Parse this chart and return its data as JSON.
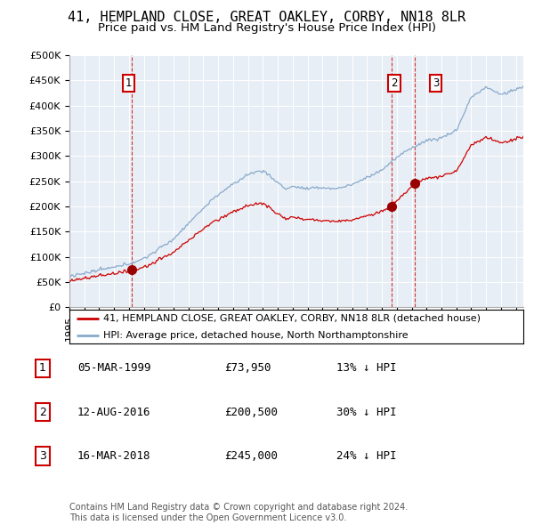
{
  "title": "41, HEMPLAND CLOSE, GREAT OAKLEY, CORBY, NN18 8LR",
  "subtitle": "Price paid vs. HM Land Registry's House Price Index (HPI)",
  "ylim": [
    0,
    500000
  ],
  "yticks": [
    0,
    50000,
    100000,
    150000,
    200000,
    250000,
    300000,
    350000,
    400000,
    450000,
    500000
  ],
  "xlim_start": 1995.0,
  "xlim_end": 2025.5,
  "sale_dates": [
    1999.18,
    2016.62,
    2018.21
  ],
  "sale_prices": [
    73950,
    200500,
    245000
  ],
  "sale_labels": [
    "1",
    "2",
    "3"
  ],
  "red_line_color": "#cc0000",
  "blue_line_color": "#88aacc",
  "marker_color": "#990000",
  "vline_color": "#cc0000",
  "legend_red_label": "41, HEMPLAND CLOSE, GREAT OAKLEY, CORBY, NN18 8LR (detached house)",
  "legend_blue_label": "HPI: Average price, detached house, North Northamptonshire",
  "table_data": [
    [
      "1",
      "05-MAR-1999",
      "£73,950",
      "13% ↓ HPI"
    ],
    [
      "2",
      "12-AUG-2016",
      "£200,500",
      "30% ↓ HPI"
    ],
    [
      "3",
      "16-MAR-2018",
      "£245,000",
      "24% ↓ HPI"
    ]
  ],
  "footnote": "Contains HM Land Registry data © Crown copyright and database right 2024.\nThis data is licensed under the Open Government Licence v3.0.",
  "background_color": "#ffffff",
  "plot_background": "#e8eef5",
  "grid_color": "#ffffff",
  "title_fontsize": 11,
  "subtitle_fontsize": 9.5,
  "tick_fontsize": 8,
  "label_box_color": "#cc0000"
}
